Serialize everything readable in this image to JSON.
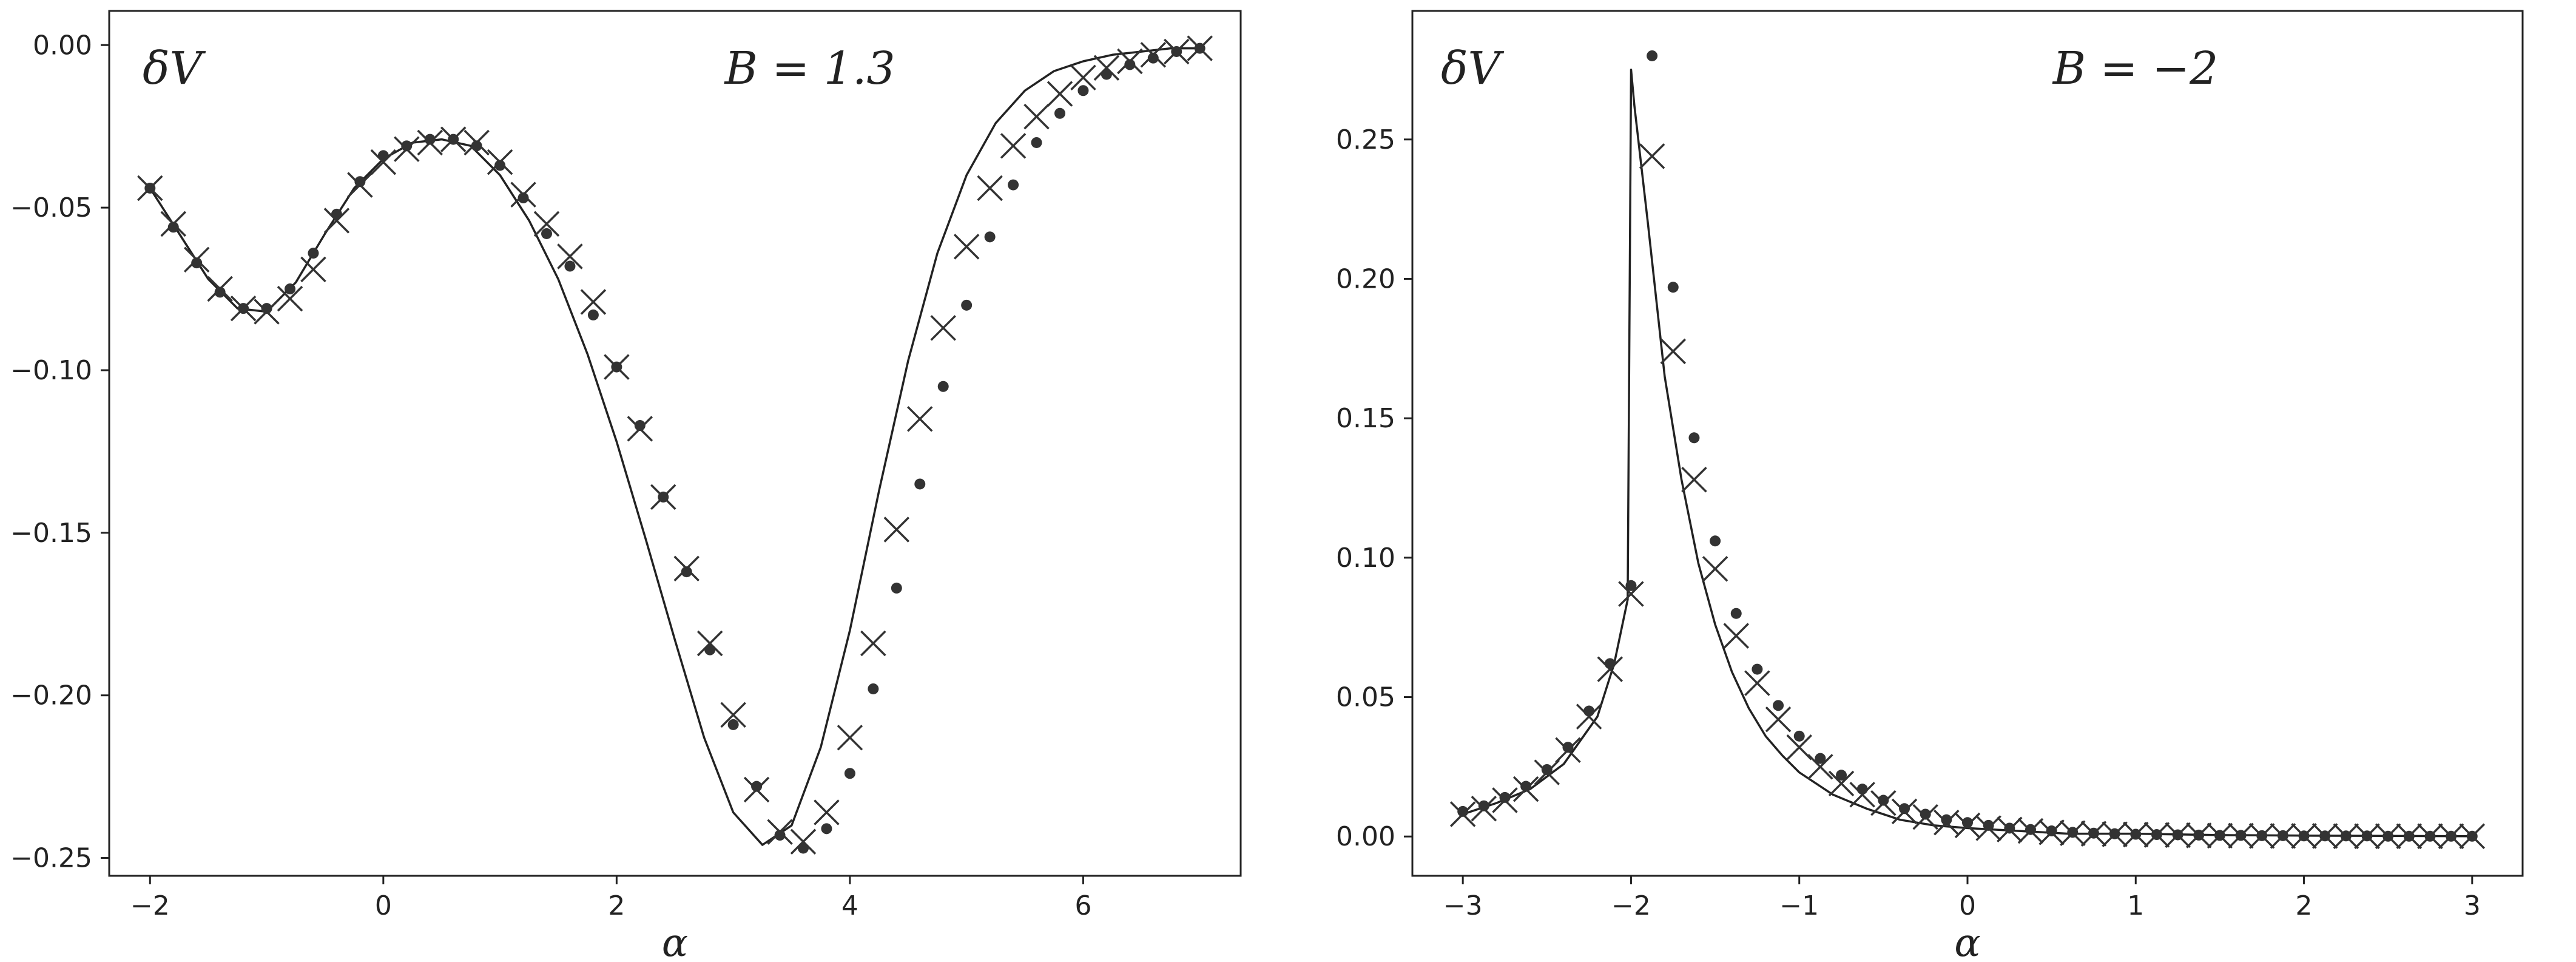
{
  "chart_data": [
    {
      "type": "line",
      "ylabel": "δV",
      "xlabel": "α",
      "annotation": "B = 1.3",
      "xlim": [
        -2.35,
        7.35
      ],
      "ylim": [
        -0.2555,
        0.0105
      ],
      "xticks": [
        -2,
        0,
        2,
        4,
        6
      ],
      "yticks": [
        0.0,
        -0.05,
        -0.1,
        -0.15,
        -0.2,
        -0.25
      ],
      "xtick_labels": [
        "−2",
        "0",
        "2",
        "4",
        "6"
      ],
      "ytick_labels": [
        "0.00",
        "−0.05",
        "−0.10",
        "−0.15",
        "−0.20",
        "−0.25"
      ],
      "grid": false,
      "series": [
        {
          "marker": "line",
          "color": "#222222",
          "x": [
            -2.0,
            -1.75,
            -1.5,
            -1.25,
            -1.0,
            -0.75,
            -0.5,
            -0.25,
            0.0,
            0.25,
            0.5,
            0.75,
            1.0,
            1.25,
            1.5,
            1.75,
            2.0,
            2.25,
            2.5,
            2.75,
            3.0,
            3.25,
            3.5,
            3.75,
            4.0,
            4.25,
            4.5,
            4.75,
            5.0,
            5.25,
            5.5,
            5.75,
            6.0,
            6.25,
            6.5,
            6.75,
            7.0
          ],
          "y": [
            -0.044,
            -0.058,
            -0.072,
            -0.081,
            -0.082,
            -0.073,
            -0.058,
            -0.044,
            -0.035,
            -0.03,
            -0.029,
            -0.031,
            -0.04,
            -0.054,
            -0.072,
            -0.095,
            -0.122,
            -0.152,
            -0.183,
            -0.213,
            -0.236,
            -0.246,
            -0.24,
            -0.216,
            -0.18,
            -0.137,
            -0.097,
            -0.064,
            -0.04,
            -0.024,
            -0.014,
            -0.008,
            -0.005,
            -0.003,
            -0.002,
            -0.001,
            -0.001
          ]
        },
        {
          "marker": "dot",
          "color": "#333333",
          "x": [
            -2.0,
            -1.8,
            -1.6,
            -1.4,
            -1.2,
            -1.0,
            -0.8,
            -0.6,
            -0.4,
            -0.2,
            0.0,
            0.2,
            0.4,
            0.6,
            0.8,
            1.0,
            1.2,
            1.4,
            1.6,
            1.8,
            2.0,
            2.2,
            2.4,
            2.6,
            2.8,
            3.0,
            3.2,
            3.4,
            3.6,
            3.8,
            4.0,
            4.2,
            4.4,
            4.6,
            4.8,
            5.0,
            5.2,
            5.4,
            5.6,
            5.8,
            6.0,
            6.2,
            6.4,
            6.6,
            6.8,
            7.0
          ],
          "y": [
            -0.044,
            -0.056,
            -0.067,
            -0.076,
            -0.081,
            -0.081,
            -0.075,
            -0.064,
            -0.052,
            -0.042,
            -0.034,
            -0.031,
            -0.029,
            -0.029,
            -0.031,
            -0.037,
            -0.047,
            -0.058,
            -0.068,
            -0.083,
            -0.099,
            -0.117,
            -0.139,
            -0.162,
            -0.186,
            -0.209,
            -0.228,
            -0.243,
            -0.247,
            -0.241,
            -0.224,
            -0.198,
            -0.167,
            -0.135,
            -0.105,
            -0.08,
            -0.059,
            -0.043,
            -0.03,
            -0.021,
            -0.014,
            -0.009,
            -0.006,
            -0.004,
            -0.002,
            -0.001
          ]
        },
        {
          "marker": "cross",
          "color": "#333333",
          "x": [
            -2.0,
            -1.8,
            -1.6,
            -1.4,
            -1.2,
            -1.0,
            -0.8,
            -0.6,
            -0.4,
            -0.2,
            0.0,
            0.2,
            0.4,
            0.6,
            0.8,
            1.0,
            1.2,
            1.4,
            1.6,
            1.8,
            2.0,
            2.2,
            2.4,
            2.6,
            2.8,
            3.0,
            3.2,
            3.4,
            3.6,
            3.8,
            4.0,
            4.2,
            4.4,
            4.6,
            4.8,
            5.0,
            5.2,
            5.4,
            5.6,
            5.8,
            6.0,
            6.2,
            6.4,
            6.6,
            6.8,
            7.0
          ],
          "y": [
            -0.044,
            -0.055,
            -0.066,
            -0.075,
            -0.081,
            -0.082,
            -0.078,
            -0.069,
            -0.054,
            -0.043,
            -0.036,
            -0.032,
            -0.03,
            -0.029,
            -0.03,
            -0.036,
            -0.046,
            -0.055,
            -0.065,
            -0.079,
            -0.099,
            -0.118,
            -0.139,
            -0.161,
            -0.184,
            -0.206,
            -0.229,
            -0.242,
            -0.245,
            -0.236,
            -0.213,
            -0.184,
            -0.149,
            -0.115,
            -0.087,
            -0.062,
            -0.044,
            -0.031,
            -0.022,
            -0.015,
            -0.01,
            -0.007,
            -0.005,
            -0.003,
            -0.002,
            -0.001
          ]
        }
      ]
    },
    {
      "type": "line",
      "ylabel": "δV",
      "xlabel": "α",
      "annotation": "B = −2",
      "xlim": [
        -3.3,
        3.3
      ],
      "ylim": [
        -0.0141,
        0.2961
      ],
      "xticks": [
        -3,
        -2,
        -1,
        0,
        1,
        2,
        3
      ],
      "yticks": [
        0.0,
        0.05,
        0.1,
        0.15,
        0.2,
        0.25
      ],
      "xtick_labels": [
        "−3",
        "−2",
        "−1",
        "0",
        "1",
        "2",
        "3"
      ],
      "ytick_labels": [
        "0.00",
        "0.05",
        "0.10",
        "0.15",
        "0.20",
        "0.25"
      ],
      "grid": false,
      "series": [
        {
          "marker": "line",
          "color": "#222222",
          "x": [
            -3.0,
            -2.8,
            -2.6,
            -2.4,
            -2.2,
            -2.1,
            -2.02,
            -2.0,
            -1.98,
            -1.9,
            -1.8,
            -1.7,
            -1.6,
            -1.5,
            -1.4,
            -1.3,
            -1.2,
            -1.1,
            -1.0,
            -0.9,
            -0.8,
            -0.6,
            -0.4,
            -0.2,
            0.0,
            0.3,
            0.6,
            1.0,
            1.5,
            2.0,
            2.5,
            3.0
          ],
          "y": [
            0.008,
            0.012,
            0.017,
            0.026,
            0.043,
            0.062,
            0.085,
            0.275,
            0.262,
            0.22,
            0.165,
            0.128,
            0.098,
            0.076,
            0.059,
            0.046,
            0.036,
            0.029,
            0.023,
            0.019,
            0.015,
            0.01,
            0.006,
            0.004,
            0.003,
            0.002,
            0.001,
            0.001,
            0.0005,
            0.0003,
            0.0002,
            0.0001
          ]
        },
        {
          "marker": "dot",
          "color": "#333333",
          "x": [
            -3.0,
            -2.875,
            -2.75,
            -2.625,
            -2.5,
            -2.375,
            -2.25,
            -2.125,
            -2.0,
            -1.875,
            -1.75,
            -1.625,
            -1.5,
            -1.375,
            -1.25,
            -1.125,
            -1.0,
            -0.875,
            -0.75,
            -0.625,
            -0.5,
            -0.375,
            -0.25,
            -0.125,
            0.0,
            0.125,
            0.25,
            0.375,
            0.5,
            0.625,
            0.75,
            0.875,
            1.0,
            1.125,
            1.25,
            1.375,
            1.5,
            1.625,
            1.75,
            1.875,
            2.0,
            2.125,
            2.25,
            2.375,
            2.5,
            2.625,
            2.75,
            2.875,
            3.0
          ],
          "y": [
            0.009,
            0.011,
            0.014,
            0.018,
            0.024,
            0.032,
            0.045,
            0.062,
            0.09,
            0.28,
            0.197,
            0.143,
            0.106,
            0.08,
            0.06,
            0.047,
            0.036,
            0.028,
            0.022,
            0.017,
            0.013,
            0.01,
            0.008,
            0.006,
            0.005,
            0.004,
            0.003,
            0.0025,
            0.002,
            0.0015,
            0.0012,
            0.001,
            0.0008,
            0.0007,
            0.0006,
            0.0005,
            0.0004,
            0.0004,
            0.0003,
            0.0003,
            0.0002,
            0.0002,
            0.0002,
            0.0002,
            0.0001,
            0.0001,
            0.0001,
            0.0001,
            0.0001
          ]
        },
        {
          "marker": "cross",
          "color": "#333333",
          "x": [
            -3.0,
            -2.875,
            -2.75,
            -2.625,
            -2.5,
            -2.375,
            -2.25,
            -2.125,
            -2.0,
            -1.875,
            -1.75,
            -1.625,
            -1.5,
            -1.375,
            -1.25,
            -1.125,
            -1.0,
            -0.875,
            -0.75,
            -0.625,
            -0.5,
            -0.375,
            -0.25,
            -0.125,
            0.0,
            0.125,
            0.25,
            0.375,
            0.5,
            0.625,
            0.75,
            0.875,
            1.0,
            1.125,
            1.25,
            1.375,
            1.5,
            1.625,
            1.75,
            1.875,
            2.0,
            2.125,
            2.25,
            2.375,
            2.5,
            2.625,
            2.75,
            2.875,
            3.0
          ],
          "y": [
            0.008,
            0.01,
            0.013,
            0.017,
            0.023,
            0.031,
            0.043,
            0.06,
            0.087,
            0.244,
            0.174,
            0.128,
            0.096,
            0.072,
            0.055,
            0.042,
            0.032,
            0.025,
            0.019,
            0.015,
            0.012,
            0.009,
            0.007,
            0.005,
            0.004,
            0.003,
            0.0025,
            0.002,
            0.0015,
            0.0012,
            0.001,
            0.0008,
            0.0007,
            0.0006,
            0.0005,
            0.0004,
            0.0003,
            0.0003,
            0.0002,
            0.0002,
            0.0002,
            0.0002,
            0.0001,
            0.0001,
            0.0001,
            0.0001,
            0.0001,
            0.0001,
            0.0001
          ]
        }
      ]
    }
  ]
}
